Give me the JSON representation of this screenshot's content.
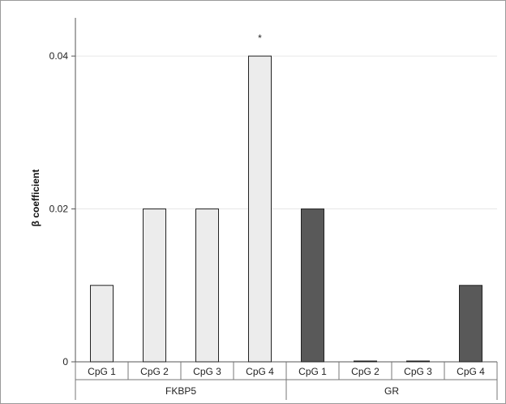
{
  "chart_data": {
    "type": "bar",
    "ylabel": "β coefficient",
    "ylim": [
      0,
      0.045
    ],
    "yticks": [
      {
        "value": 0,
        "label": "0"
      },
      {
        "value": 0.02,
        "label": "0.02"
      },
      {
        "value": 0.04,
        "label": "0.04"
      }
    ],
    "grid": true,
    "groups": [
      {
        "name": "FKBP5",
        "color": "#ececec"
      },
      {
        "name": "GR",
        "color": "#595959"
      }
    ],
    "bars": [
      {
        "group": "FKBP5",
        "category": "CpG 1",
        "value": 0.01,
        "annotation": ""
      },
      {
        "group": "FKBP5",
        "category": "CpG 2",
        "value": 0.02,
        "annotation": ""
      },
      {
        "group": "FKBP5",
        "category": "CpG 3",
        "value": 0.02,
        "annotation": ""
      },
      {
        "group": "FKBP5",
        "category": "CpG 4",
        "value": 0.04,
        "annotation": "*"
      },
      {
        "group": "GR",
        "category": "CpG 1",
        "value": 0.02,
        "annotation": ""
      },
      {
        "group": "GR",
        "category": "CpG 2",
        "value": 0.0,
        "annotation": ""
      },
      {
        "group": "GR",
        "category": "CpG 3",
        "value": 0.0,
        "annotation": ""
      },
      {
        "group": "GR",
        "category": "CpG 4",
        "value": 0.01,
        "annotation": ""
      }
    ]
  }
}
